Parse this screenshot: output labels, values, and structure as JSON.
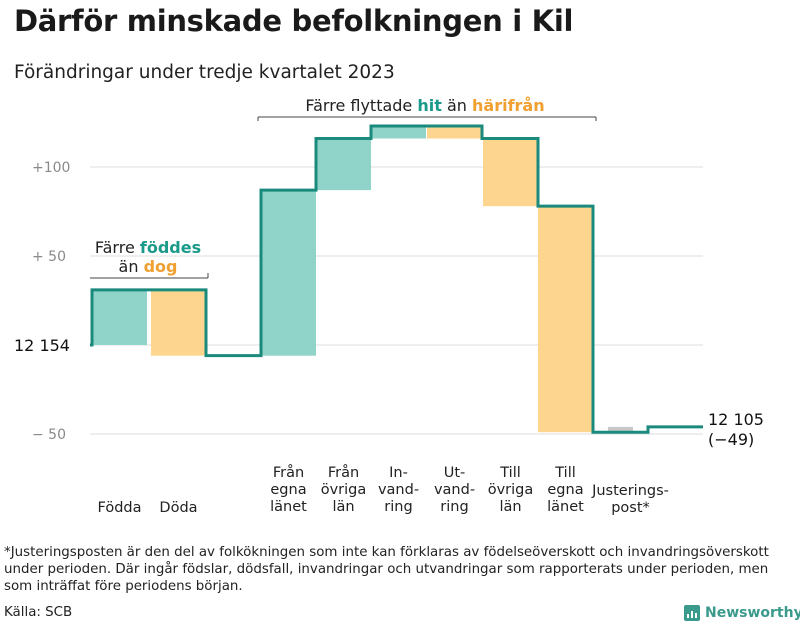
{
  "title": "Därför minskade befolkningen i Kil",
  "subtitle": "Förändringar under tredje kvartalet 2023",
  "colors": {
    "increase_fill": "#8fd3c9",
    "decrease_fill": "#fdd58e",
    "step_line": "#1a8a7c",
    "adjust_fill": "#c8c8c8",
    "teal_text": "#1a9a8a",
    "orange_text": "#f0a030",
    "grid": "#e3e3e3"
  },
  "chart_data": {
    "type": "waterfall",
    "start_value": 12154,
    "start_label": "12  154",
    "end_value": 12105,
    "end_label": "12 105",
    "end_change_label": "(−49)",
    "y_ticks": [
      {
        "value": 100,
        "label": "+100"
      },
      {
        "value": 50,
        "label": "+  50"
      },
      {
        "value": -50,
        "label": "−  50"
      }
    ],
    "ylim": [
      -55,
      125
    ],
    "steps": [
      {
        "label_lines": [
          "Födda"
        ],
        "change": 31,
        "color": "increase"
      },
      {
        "label_lines": [
          "Döda"
        ],
        "change": -37,
        "color": "decrease"
      },
      {
        "label_lines": [
          "Från",
          "egna",
          "länet"
        ],
        "change": 93,
        "color": "increase"
      },
      {
        "label_lines": [
          "Från",
          "övriga",
          "län"
        ],
        "change": 29,
        "color": "increase"
      },
      {
        "label_lines": [
          "In-",
          "vand-",
          "ring"
        ],
        "change": 7,
        "color": "increase"
      },
      {
        "label_lines": [
          "Ut-",
          "vand-",
          "ring"
        ],
        "change": -7,
        "color": "decrease"
      },
      {
        "label_lines": [
          "Till",
          "övriga",
          "län"
        ],
        "change": -38,
        "color": "decrease"
      },
      {
        "label_lines": [
          "Till",
          "egna",
          "länet"
        ],
        "change": -127,
        "color": "decrease"
      },
      {
        "label_lines": [
          "Justerings-",
          "post*"
        ],
        "change": 3,
        "color": "adjust"
      }
    ],
    "annotations": [
      {
        "segments": [
          {
            "text": "Färre ",
            "style": "plain"
          },
          {
            "text": "föddes",
            "style": "teal"
          }
        ],
        "line2": [
          {
            "text": "än ",
            "style": "plain"
          },
          {
            "text": "dog",
            "style": "orange"
          }
        ]
      },
      {
        "segments": [
          {
            "text": "Färre flyttade ",
            "style": "plain"
          },
          {
            "text": "hit",
            "style": "teal"
          },
          {
            "text": "  än ",
            "style": "plain"
          },
          {
            "text": "härifrån",
            "style": "orange"
          }
        ]
      }
    ]
  },
  "footnote": "*Justeringsposten är den del av folkökningen som inte kan förklaras av födelseöverskott och invandringsöverskott under perioden. Där ingår födslar, dödsfall, invandringar och utvandringar som rapporterats under perioden, men som inträffat före periodens början.",
  "source": "Källa: SCB",
  "brand": "Newsworthy"
}
